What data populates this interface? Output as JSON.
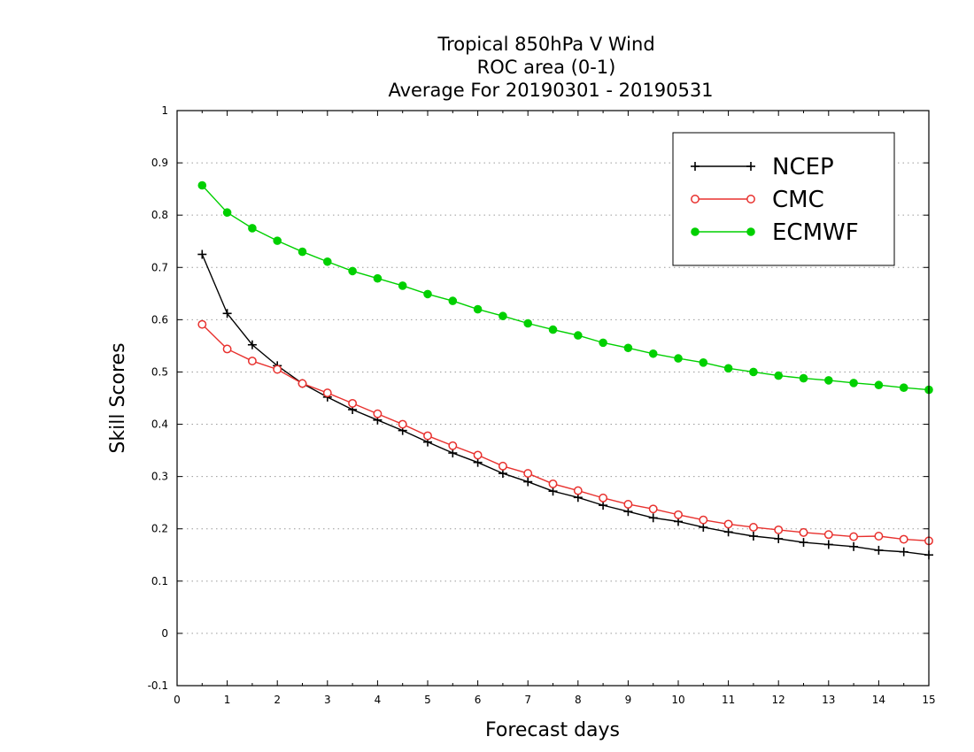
{
  "chart_data": {
    "type": "line",
    "title": [
      "Tropical 850hPa V Wind",
      "ROC area (0-1)",
      "Average For 20190301 - 20190531"
    ],
    "xlabel": "Forecast days",
    "ylabel": "Skill Scores",
    "xlim": [
      0,
      15
    ],
    "ylim": [
      -0.1,
      1
    ],
    "x_ticks": [
      0,
      1,
      2,
      3,
      4,
      5,
      6,
      7,
      8,
      9,
      10,
      11,
      12,
      13,
      14,
      15
    ],
    "y_ticks": [
      -0.1,
      0,
      0.1,
      0.2,
      0.3,
      0.4,
      0.5,
      0.6,
      0.7,
      0.8,
      0.9,
      1
    ],
    "y_tick_labels": [
      "-0.1",
      "0",
      "0.1",
      "0.2",
      "0.3",
      "0.4",
      "0.5",
      "0.6",
      "0.7",
      "0.8",
      "0.9",
      "1"
    ],
    "grid": "horizontal dotted",
    "legend_position": "top-right",
    "x": [
      0.5,
      1,
      1.5,
      2,
      2.5,
      3,
      3.5,
      4,
      4.5,
      5,
      5.5,
      6,
      6.5,
      7,
      7.5,
      8,
      8.5,
      9,
      9.5,
      10,
      10.5,
      11,
      11.5,
      12,
      12.5,
      13,
      13.5,
      14,
      14.5,
      15
    ],
    "series": [
      {
        "name": "NCEP",
        "color": "#000000",
        "marker": "plus",
        "values": [
          0.725,
          0.612,
          0.552,
          0.512,
          0.478,
          0.452,
          0.428,
          0.408,
          0.388,
          0.366,
          0.345,
          0.327,
          0.306,
          0.29,
          0.272,
          0.26,
          0.245,
          0.233,
          0.221,
          0.214,
          0.203,
          0.194,
          0.186,
          0.181,
          0.174,
          0.17,
          0.166,
          0.159,
          0.156,
          0.15
        ]
      },
      {
        "name": "CMC",
        "color": "#e8312e",
        "marker": "open-circle",
        "values": [
          0.591,
          0.544,
          0.521,
          0.505,
          0.478,
          0.46,
          0.44,
          0.42,
          0.4,
          0.378,
          0.359,
          0.341,
          0.32,
          0.306,
          0.286,
          0.273,
          0.259,
          0.247,
          0.238,
          0.227,
          0.217,
          0.209,
          0.203,
          0.198,
          0.193,
          0.189,
          0.185,
          0.186,
          0.18,
          0.177
        ]
      },
      {
        "name": "ECMWF",
        "color": "#00d000",
        "marker": "filled-circle",
        "values": [
          0.857,
          0.805,
          0.775,
          0.751,
          0.73,
          0.711,
          0.693,
          0.679,
          0.665,
          0.649,
          0.636,
          0.62,
          0.607,
          0.593,
          0.581,
          0.57,
          0.556,
          0.546,
          0.535,
          0.526,
          0.518,
          0.507,
          0.5,
          0.493,
          0.488,
          0.484,
          0.479,
          0.475,
          0.47,
          0.466
        ]
      }
    ]
  }
}
